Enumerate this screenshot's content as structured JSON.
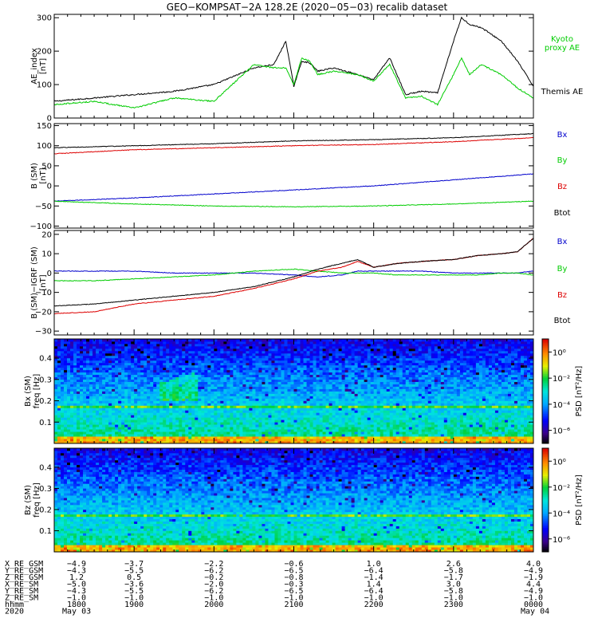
{
  "title": "GEO−KOMPSAT−2A 128.2E (2020−05−03) recalib dataset",
  "chart_data": [
    {
      "type": "line",
      "panel": "ae-index",
      "ylabel": "AE_index",
      "yunit": "[nT]",
      "ylim": [
        0,
        310
      ],
      "yticks": [
        "0",
        "100",
        "200",
        "300"
      ],
      "ytick_values": [
        0,
        100,
        200,
        300
      ],
      "x_hours": [
        18.0,
        18.5,
        19.0,
        19.5,
        20.0,
        20.5,
        20.75,
        20.9,
        21.0,
        21.1,
        21.2,
        21.3,
        21.5,
        21.8,
        22.0,
        22.2,
        22.4,
        22.6,
        22.8,
        23.0,
        23.1,
        23.2,
        23.35,
        23.6,
        23.8,
        24.0
      ],
      "series": [
        {
          "name": "Themis AE",
          "color": "#000000",
          "values": [
            50,
            60,
            70,
            80,
            100,
            150,
            160,
            230,
            95,
            170,
            165,
            140,
            150,
            130,
            115,
            180,
            70,
            80,
            75,
            230,
            300,
            280,
            270,
            230,
            170,
            95
          ]
        },
        {
          "name": "Kyoto proxy AE",
          "color": "#00cc00",
          "values": [
            40,
            50,
            30,
            60,
            50,
            160,
            150,
            150,
            100,
            180,
            170,
            130,
            140,
            130,
            110,
            160,
            60,
            65,
            40,
            130,
            180,
            130,
            160,
            130,
            90,
            60
          ]
        }
      ]
    },
    {
      "type": "line",
      "panel": "b-sm",
      "ylabel": "B (SM)",
      "yunit": "[nT]",
      "ylim": [
        -105,
        155
      ],
      "yticks": [
        "−100",
        "−50",
        "0",
        "50",
        "100",
        "150"
      ],
      "ytick_values": [
        -100,
        -50,
        0,
        50,
        100,
        150
      ],
      "x_hours": [
        18.0,
        19.0,
        20.0,
        21.0,
        22.0,
        23.0,
        24.0
      ],
      "series": [
        {
          "name": "Bx",
          "color": "#0000cc",
          "values": [
            -38,
            -30,
            -20,
            -10,
            0,
            15,
            30
          ]
        },
        {
          "name": "By",
          "color": "#00cc00",
          "values": [
            -38,
            -45,
            -50,
            -52,
            -50,
            -45,
            -38
          ]
        },
        {
          "name": "Bz",
          "color": "#dd0000",
          "values": [
            80,
            90,
            95,
            100,
            103,
            110,
            120
          ]
        },
        {
          "name": "Btot",
          "color": "#000000",
          "values": [
            95,
            100,
            105,
            112,
            115,
            120,
            130
          ]
        }
      ]
    },
    {
      "type": "line",
      "panel": "b-minus-igrf",
      "ylabel": "B (SM)−IGRF (SM)",
      "yunit": "[nT]",
      "ylim": [
        -32,
        22
      ],
      "yticks": [
        "−30",
        "−20",
        "−10",
        "0",
        "10",
        "20"
      ],
      "ytick_values": [
        -30,
        -20,
        -10,
        0,
        10,
        20
      ],
      "x_hours": [
        18.0,
        18.5,
        19.0,
        19.5,
        20.0,
        20.5,
        21.0,
        21.3,
        21.6,
        21.8,
        22.0,
        22.3,
        22.6,
        23.0,
        23.3,
        23.6,
        23.8,
        24.0
      ],
      "series": [
        {
          "name": "Bx",
          "color": "#0000cc",
          "values": [
            1,
            1,
            1,
            0,
            0,
            0,
            -1,
            -2,
            -1,
            1,
            1,
            1,
            1,
            0,
            0,
            0,
            0,
            1
          ]
        },
        {
          "name": "By",
          "color": "#00cc00",
          "values": [
            -4,
            -4,
            -3,
            -2,
            -1,
            1,
            2,
            1,
            0,
            0,
            0,
            -1,
            -1,
            -1,
            -1,
            0,
            0,
            -1
          ]
        },
        {
          "name": "Bz",
          "color": "#dd0000",
          "values": [
            -21,
            -20,
            -16,
            -14,
            -12,
            -8,
            -3,
            1,
            3,
            6,
            3,
            5,
            6,
            7,
            9,
            10,
            11,
            18
          ]
        },
        {
          "name": "Btot",
          "color": "#000000",
          "values": [
            -17,
            -16,
            -14,
            -12,
            -10,
            -7,
            -2,
            2,
            5,
            7,
            3,
            5,
            6,
            7,
            9,
            10,
            11,
            18
          ]
        }
      ]
    },
    {
      "type": "heatmap",
      "panel": "bx-spectrogram",
      "ylabel": "Bx (SM)",
      "ylabel2": "freq [Hz]",
      "ylim": [
        0,
        0.49
      ],
      "yticks": [
        "0.1",
        "0.2",
        "0.3",
        "0.4"
      ],
      "ytick_values": [
        0.1,
        0.2,
        0.3,
        0.4
      ],
      "colorbar_label": "PSD [nT²/Hz]",
      "colorbar_ticks": [
        "10⁰",
        "10⁻²",
        "10⁻⁴",
        "10⁻⁶"
      ],
      "colorbar_exponents": [
        0,
        -2,
        -4,
        -6
      ],
      "colorbar_range_exp": [
        -7,
        1
      ],
      "features": {
        "horizontal_line_hz": 0.17,
        "wave_patch_hours": [
          19.3,
          19.8
        ],
        "wave_patch_hz": [
          0.2,
          0.32
        ]
      }
    },
    {
      "type": "heatmap",
      "panel": "bz-spectrogram",
      "ylabel": "Bz (SM)",
      "ylabel2": "freq [Hz]",
      "ylim": [
        0,
        0.49
      ],
      "yticks": [
        "0.1",
        "0.2",
        "0.3",
        "0.4"
      ],
      "ytick_values": [
        0.1,
        0.2,
        0.3,
        0.4
      ],
      "colorbar_label": "PSD [nT²/Hz]",
      "colorbar_ticks": [
        "10⁰",
        "10⁻²",
        "10⁻⁴",
        "10⁻⁶"
      ],
      "colorbar_exponents": [
        0,
        -2,
        -4,
        -6
      ],
      "colorbar_range_exp": [
        -7,
        1
      ],
      "features": {
        "horizontal_line_hz": 0.17
      }
    }
  ],
  "legends": {
    "ae": [
      {
        "text": "Kyoto\nproxy AE",
        "color": "#00cc00"
      },
      {
        "text": "Themis AE",
        "color": "#000000"
      }
    ],
    "b": [
      {
        "text": "Bx",
        "color": "#0000cc"
      },
      {
        "text": "By",
        "color": "#00cc00"
      },
      {
        "text": "Bz",
        "color": "#dd0000"
      },
      {
        "text": "Btot",
        "color": "#000000"
      }
    ],
    "dB": [
      {
        "text": "Bx",
        "color": "#0000cc"
      },
      {
        "text": "By",
        "color": "#00cc00"
      },
      {
        "text": "Bz",
        "color": "#dd0000"
      },
      {
        "text": "Btot",
        "color": "#000000"
      }
    ]
  },
  "x_axis": {
    "range_hours": [
      18,
      24
    ],
    "major_hours": [
      18,
      19,
      20,
      21,
      22,
      23,
      24
    ],
    "col_hours": [
      18,
      18.67,
      19,
      19.67,
      20,
      21,
      22,
      23,
      24
    ]
  },
  "ephemeris": {
    "rows": [
      {
        "label": "X_RE_GSM",
        "values": [
          "−4.9",
          "−3.7",
          "−2.2",
          "−0.6",
          "1.0",
          "2.6",
          "4.0"
        ]
      },
      {
        "label": "Y_RE_GSM",
        "values": [
          "−4.3",
          "−5.5",
          "−6.2",
          "−6.5",
          "−6.4",
          "−5.8",
          "−4.9"
        ]
      },
      {
        "label": "Z_RE_GSM",
        "values": [
          "1.2",
          "0.5",
          "−0.2",
          "−0.8",
          "−1.4",
          "−1.7",
          "−1.9"
        ]
      },
      {
        "label": "X_RE_SM",
        "values": [
          "−5.0",
          "−3.6",
          "−2.0",
          "−0.3",
          "1.4",
          "3.0",
          "4.4"
        ]
      },
      {
        "label": "Y_RE_SM",
        "values": [
          "−4.3",
          "−5.5",
          "−6.2",
          "−6.5",
          "−6.4",
          "−5.8",
          "−4.9"
        ]
      },
      {
        "label": "Z_RE_SM",
        "values": [
          "−1.0",
          "−1.0",
          "−1.0",
          "−1.0",
          "−1.0",
          "−1.0",
          "−1.0"
        ]
      },
      {
        "label": "hhmm",
        "values": [
          "1800",
          "1900",
          "2000",
          "2100",
          "2200",
          "2300",
          "0000"
        ]
      }
    ],
    "date_row": {
      "label": "2020",
      "start": "May 03",
      "end": "May 04"
    }
  }
}
